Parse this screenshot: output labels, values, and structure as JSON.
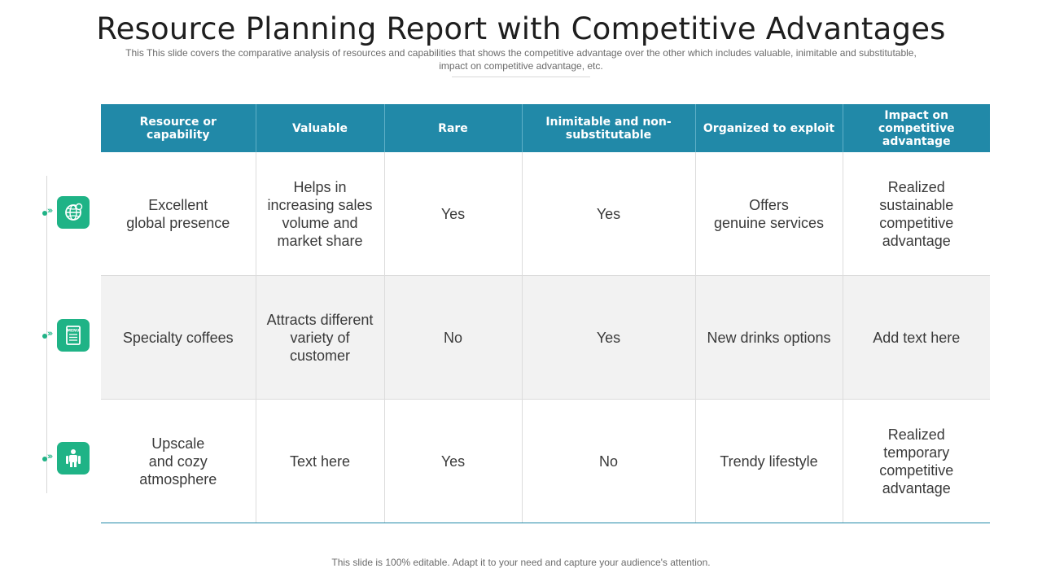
{
  "title": "Resource Planning Report with Competitive Advantages",
  "subtitle": "This This slide covers the comparative  analysis of resources and capabilities that shows the competitive advantage  over the other which includes valuable,  inimitable and substitutable, impact on competitive advantage,  etc.",
  "table": {
    "headers": [
      "Resource or capability",
      "Valuable",
      "Rare",
      "Inimitable and non-substitutable",
      "Organized to exploit",
      "Impact on competitive advantage"
    ],
    "rows": [
      {
        "icon": "globe-icon",
        "cells": [
          "Excellent\nglobal presence",
          "Helps in\nincreasing sales\nvolume and\nmarket share",
          "Yes",
          "Yes",
          "Offers\ngenuine services",
          "Realized\nsustainable\ncompetitive\nadvantage"
        ]
      },
      {
        "icon": "menu-board-icon",
        "cells": [
          "Specialty coffees",
          "Attracts different\nvariety of\ncustomer",
          "No",
          "Yes",
          "New drinks options",
          "Add text here"
        ]
      },
      {
        "icon": "lifestyle-icon",
        "cells": [
          "Upscale\nand cozy\natmosphere",
          "Text here",
          "Yes",
          "No",
          "Trendy lifestyle",
          "Realized\ntemporary\ncompetitive\nadvantage"
        ]
      }
    ],
    "menu_icon_text": "MENU"
  },
  "colors": {
    "header": "#2189a8",
    "accent": "#1fb386",
    "no": "#e2473d",
    "shade": "#f2f2f2"
  },
  "footer": "This slide is 100% editable. Adapt it to your need and capture your audience's attention."
}
